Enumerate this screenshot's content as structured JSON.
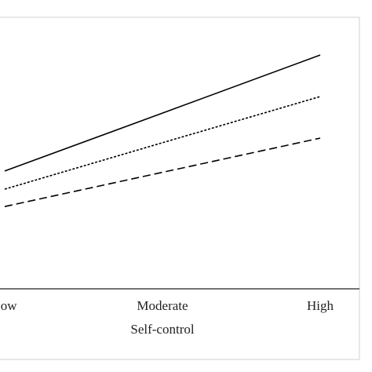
{
  "chart_data": {
    "type": "line",
    "x_label": "Self-control",
    "categories": [
      "Low",
      "Moderate",
      "High"
    ],
    "ylim": [
      0,
      10
    ],
    "series": [
      {
        "color": "#000000",
        "dash": "solid",
        "values": [
          4.34,
          6.47,
          8.61
        ]
      },
      {
        "color": "#000000",
        "dash": "dotted",
        "values": [
          3.67,
          5.38,
          7.08
        ]
      },
      {
        "color": "#000000",
        "dash": "dashed",
        "values": [
          3.03,
          4.29,
          5.55
        ]
      }
    ]
  }
}
